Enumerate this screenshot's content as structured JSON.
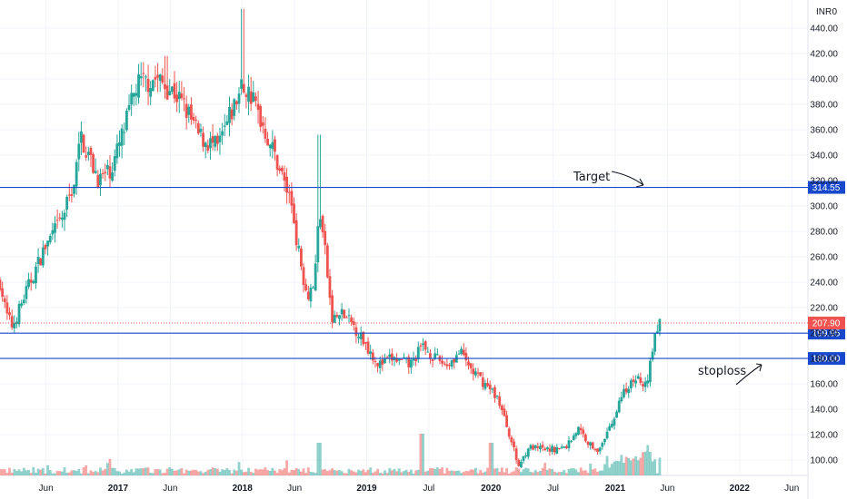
{
  "chart_data": {
    "type": "candlestick",
    "currency": "INR",
    "y_axis_top_label": "0",
    "ylim": [
      88,
      462
    ],
    "y_ticks": [
      "100.00",
      "120.00",
      "140.00",
      "160.00",
      "180.00",
      "200.00",
      "220.00",
      "240.00",
      "260.00",
      "280.00",
      "300.00",
      "320.00",
      "340.00",
      "360.00",
      "380.00",
      "400.00",
      "420.00",
      "440.00"
    ],
    "x_ticks": [
      "Jun",
      "2017",
      "Jun",
      "2018",
      "Jun",
      "2019",
      "Jul",
      "2020",
      "Jul",
      "2021",
      "Jun",
      "2022",
      "Jun"
    ],
    "x_tick_years": [
      2016.42,
      2017.0,
      2017.42,
      2018.0,
      2018.42,
      2019.0,
      2019.5,
      2020.0,
      2020.5,
      2021.0,
      2021.42,
      2022.0,
      2022.42
    ],
    "x_range": [
      2016.05,
      2022.55
    ],
    "series_key_points": [
      {
        "x": 2016.05,
        "y": 240
      },
      {
        "x": 2016.1,
        "y": 215
      },
      {
        "x": 2016.15,
        "y": 205
      },
      {
        "x": 2016.25,
        "y": 230
      },
      {
        "x": 2016.4,
        "y": 265
      },
      {
        "x": 2016.55,
        "y": 290
      },
      {
        "x": 2016.65,
        "y": 320
      },
      {
        "x": 2016.7,
        "y": 355
      },
      {
        "x": 2016.78,
        "y": 335
      },
      {
        "x": 2016.85,
        "y": 320
      },
      {
        "x": 2016.95,
        "y": 330
      },
      {
        "x": 2017.05,
        "y": 360
      },
      {
        "x": 2017.15,
        "y": 395
      },
      {
        "x": 2017.3,
        "y": 400
      },
      {
        "x": 2017.45,
        "y": 390
      },
      {
        "x": 2017.55,
        "y": 375
      },
      {
        "x": 2017.65,
        "y": 355
      },
      {
        "x": 2017.8,
        "y": 345
      },
      {
        "x": 2017.9,
        "y": 370
      },
      {
        "x": 2018.0,
        "y": 395
      },
      {
        "x": 2018.08,
        "y": 385
      },
      {
        "x": 2018.18,
        "y": 360
      },
      {
        "x": 2018.3,
        "y": 330
      },
      {
        "x": 2018.4,
        "y": 300
      },
      {
        "x": 2018.45,
        "y": 265
      },
      {
        "x": 2018.52,
        "y": 230
      },
      {
        "x": 2018.58,
        "y": 240
      },
      {
        "x": 2018.62,
        "y": 300
      },
      {
        "x": 2018.67,
        "y": 260
      },
      {
        "x": 2018.72,
        "y": 210
      },
      {
        "x": 2018.8,
        "y": 215
      },
      {
        "x": 2018.9,
        "y": 205
      },
      {
        "x": 2019.0,
        "y": 190
      },
      {
        "x": 2019.1,
        "y": 175
      },
      {
        "x": 2019.2,
        "y": 180
      },
      {
        "x": 2019.35,
        "y": 175
      },
      {
        "x": 2019.45,
        "y": 190
      },
      {
        "x": 2019.55,
        "y": 180
      },
      {
        "x": 2019.65,
        "y": 175
      },
      {
        "x": 2019.75,
        "y": 185
      },
      {
        "x": 2019.85,
        "y": 170
      },
      {
        "x": 2019.95,
        "y": 160
      },
      {
        "x": 2020.05,
        "y": 150
      },
      {
        "x": 2020.15,
        "y": 120
      },
      {
        "x": 2020.22,
        "y": 95
      },
      {
        "x": 2020.3,
        "y": 110
      },
      {
        "x": 2020.45,
        "y": 108
      },
      {
        "x": 2020.6,
        "y": 110
      },
      {
        "x": 2020.7,
        "y": 125
      },
      {
        "x": 2020.8,
        "y": 112
      },
      {
        "x": 2020.88,
        "y": 108
      },
      {
        "x": 2020.96,
        "y": 125
      },
      {
        "x": 2021.05,
        "y": 150
      },
      {
        "x": 2021.15,
        "y": 165
      },
      {
        "x": 2021.25,
        "y": 160
      },
      {
        "x": 2021.3,
        "y": 185
      },
      {
        "x": 2021.35,
        "y": 212
      },
      {
        "x": 2021.37,
        "y": 207.9
      }
    ],
    "levels": [
      {
        "value": 314.55,
        "label": "314.55",
        "color": "#1848cc",
        "annotation": "Target"
      },
      {
        "value": 199.95,
        "label": "199.95",
        "color": "#1848cc",
        "annotation": ""
      },
      {
        "value": 180.0,
        "label": "180.00",
        "color": "#1848cc",
        "annotation": "stoploss"
      }
    ],
    "last_price": {
      "value": 207.9,
      "label": "207.90",
      "color": "#ef5350"
    },
    "up_color": "#26a69a",
    "down_color": "#ef5350",
    "grid": true
  },
  "annotations": {
    "target_text": "Target",
    "stoploss_text": "stoploss"
  }
}
